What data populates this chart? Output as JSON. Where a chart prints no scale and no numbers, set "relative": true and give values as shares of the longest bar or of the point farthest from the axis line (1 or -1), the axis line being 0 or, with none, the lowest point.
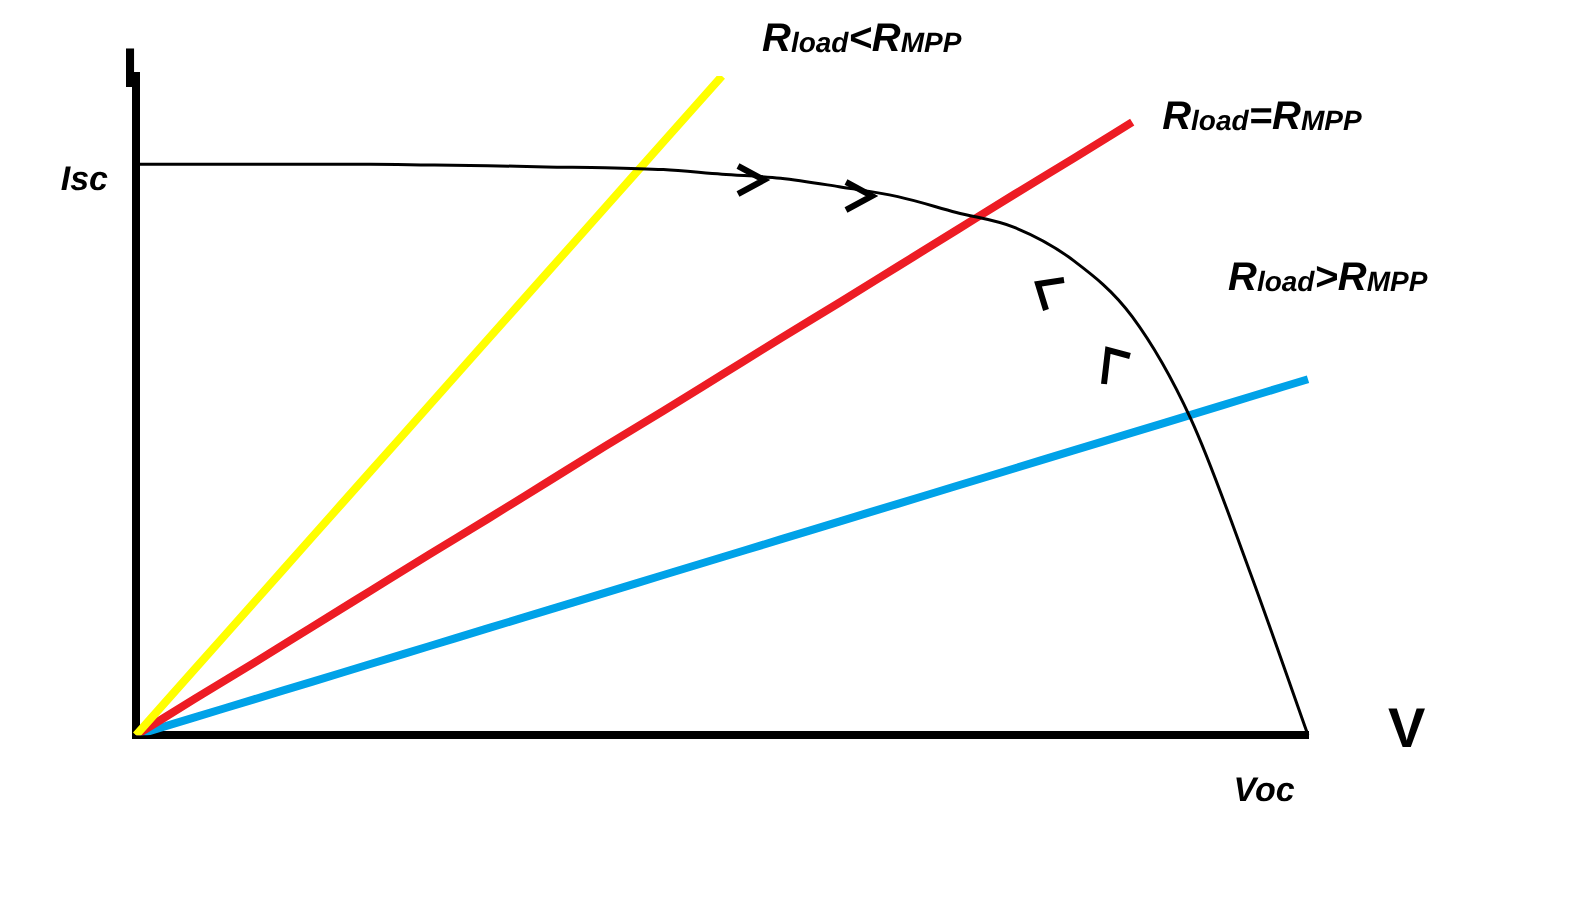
{
  "chart_data": {
    "type": "line",
    "relative": true,
    "xlabel": "V",
    "ylabel": "I",
    "legend": false,
    "grid": false,
    "marker": "none",
    "line_style": "solid",
    "categories": [
      null,
      null,
      null,
      null,
      null,
      null,
      null,
      null,
      null,
      null,
      null,
      null,
      null,
      null,
      null,
      null,
      null,
      null,
      null,
      null,
      null
    ],
    "annotations": [
      "Isc",
      "Voc"
    ],
    "series": [
      {
        "color": "#000000",
        "values": [
          0.866,
          0.866,
          0.866,
          0.866,
          0.866,
          0.865,
          0.864,
          0.862,
          0.861,
          0.858,
          0.851,
          0.845,
          0.832,
          0.817,
          0.793,
          0.77,
          0.72,
          0.635,
          0.48,
          0.25,
          0
        ]
      },
      {
        "name": "R$_{load}$<R$_{MPP}$",
        "color": "#ffff00",
        "values": [
          0,
          0.1,
          0.2,
          0.3,
          0.4,
          0.5,
          0.6,
          0.7,
          0.8,
          0.9,
          1,
          null,
          null,
          null,
          null,
          null,
          null,
          null,
          null,
          null,
          null
        ]
      },
      {
        "name": "R$_{load}$=R$_{MPP}$",
        "color": "#ed1c24",
        "values": [
          0,
          0.055,
          0.109,
          0.164,
          0.219,
          0.274,
          0.328,
          0.383,
          0.438,
          0.492,
          0.547,
          0.602,
          0.656,
          0.711,
          0.766,
          0.821,
          0.875,
          0.93,
          null,
          null,
          null
        ]
      },
      {
        "name": "R$_{load}$>R$_{MPP}$",
        "color": "#00a2e8",
        "values": [
          0,
          0.027,
          0.054,
          0.081,
          0.108,
          0.135,
          0.162,
          0.189,
          0.216,
          0.243,
          0.27,
          0.297,
          0.324,
          0.351,
          0.378,
          0.405,
          0.432,
          0.459,
          0.486,
          0.513,
          0.54
        ]
      }
    ]
  }
}
